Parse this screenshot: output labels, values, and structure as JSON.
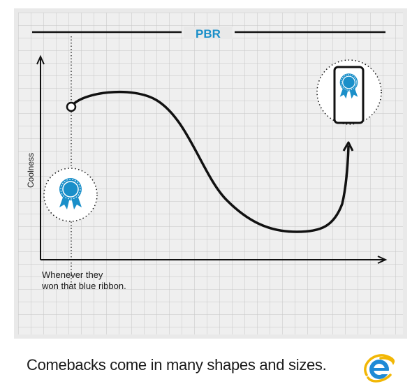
{
  "title": "PBR",
  "ylabel": "Coolness",
  "annotation": {
    "line1": "Whenever they",
    "line2": "won that blue ribbon."
  },
  "caption": "Comebacks come in many shapes and sizes.",
  "icons": {
    "ribbon": "blue-ribbon-icon",
    "phone": "smartphone-ribbon-icon",
    "browser": "internet-explorer-logo"
  },
  "colors": {
    "accent_blue": "#1a8fc9",
    "grid_bg": "#e9e9e9",
    "ink": "#111111"
  }
}
